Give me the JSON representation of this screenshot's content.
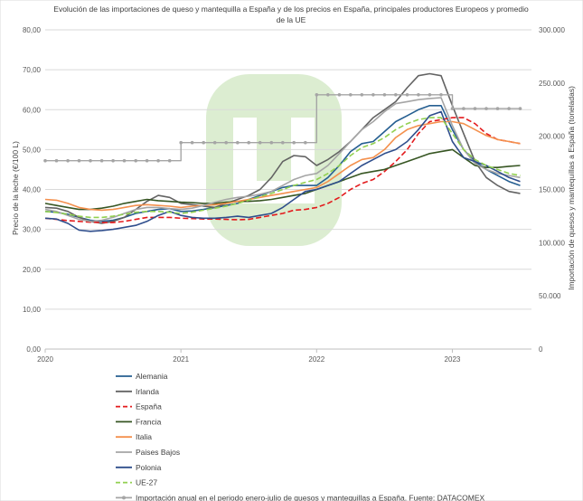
{
  "chart_data": {
    "type": "line",
    "title_lines": [
      "Evolución de las importaciones de queso y mantequilla a España y de los precios en  España, principales productores Europeos y promedio",
      "de la UE"
    ],
    "ylabel_left": "Precio de la leche (€/100 L)",
    "ylabel_right": "Importación de quesos y mantequillas a España (toneladas)",
    "ylim_left": [
      0,
      80
    ],
    "ylim_right": [
      0,
      300000
    ],
    "yticks_left": [
      "0,00",
      "10,00",
      "20,00",
      "30,00",
      "40,00",
      "50,00",
      "60,00",
      "70,00",
      "80,00"
    ],
    "yticks_right": [
      "0",
      "50.000",
      "100.000",
      "150.000",
      "200.000",
      "250.000",
      "300.000"
    ],
    "xlim": [
      2020,
      2023.583
    ],
    "xticks": [
      "2020",
      "2021",
      "2022",
      "2023"
    ],
    "gridlines": "horizontal",
    "legend_position": "bottom",
    "series": [
      {
        "name": "Alemania",
        "color": "#255E91",
        "dash": "solid",
        "axis": "left",
        "x": [
          2020,
          2020.083,
          2020.167,
          2020.25,
          2020.333,
          2020.417,
          2020.5,
          2020.583,
          2020.667,
          2020.75,
          2020.833,
          2020.917,
          2021,
          2021.083,
          2021.167,
          2021.25,
          2021.333,
          2021.417,
          2021.5,
          2021.583,
          2021.667,
          2021.75,
          2021.833,
          2021.917,
          2022,
          2022.083,
          2022.167,
          2022.25,
          2022.333,
          2022.417,
          2022.5,
          2022.583,
          2022.667,
          2022.75,
          2022.833,
          2022.917,
          2023,
          2023.083,
          2023.167,
          2023.25,
          2023.333,
          2023.417,
          2023.5
        ],
        "y": [
          34.5,
          34.3,
          33.8,
          33.0,
          32.3,
          32.0,
          32.3,
          33.0,
          34.0,
          34.5,
          35.0,
          35.2,
          34.5,
          34.6,
          35.0,
          35.5,
          36.0,
          36.5,
          37.5,
          38.5,
          39.5,
          40.5,
          41.0,
          41.0,
          41.0,
          43.0,
          46.0,
          49.5,
          51.5,
          52.0,
          54.5,
          57.0,
          58.5,
          60.0,
          61.0,
          61.0,
          55.0,
          50.0,
          47.0,
          45.0,
          43.5,
          42.0,
          41.0
        ]
      },
      {
        "name": "Irlanda",
        "color": "#636363",
        "dash": "solid",
        "axis": "left",
        "x": [
          2020,
          2020.083,
          2020.167,
          2020.25,
          2020.333,
          2020.417,
          2020.5,
          2020.583,
          2020.667,
          2020.75,
          2020.833,
          2020.917,
          2021,
          2021.083,
          2021.167,
          2021.25,
          2021.333,
          2021.417,
          2021.5,
          2021.583,
          2021.667,
          2021.75,
          2021.833,
          2021.917,
          2022,
          2022.083,
          2022.167,
          2022.25,
          2022.333,
          2022.417,
          2022.5,
          2022.583,
          2022.667,
          2022.75,
          2022.833,
          2022.917,
          2023,
          2023.083,
          2023.167,
          2023.25,
          2023.333,
          2023.417,
          2023.5
        ],
        "y": [
          35.5,
          35.3,
          34.5,
          33.0,
          32.0,
          31.5,
          32.0,
          33.0,
          35.0,
          37.0,
          38.5,
          38.0,
          36.5,
          36.2,
          35.8,
          35.5,
          36.5,
          37.5,
          38.5,
          40.0,
          43.0,
          47.0,
          48.5,
          48.2,
          46.0,
          47.5,
          49.5,
          52.0,
          55.0,
          58.0,
          60.0,
          62.0,
          65.5,
          68.5,
          69.0,
          68.5,
          61.0,
          54.0,
          47.0,
          43.0,
          41.0,
          39.5,
          39.0
        ]
      },
      {
        "name": "España",
        "color": "#E31A1C",
        "dash": "6,3",
        "axis": "left",
        "x": [
          2020,
          2020.083,
          2020.167,
          2020.25,
          2020.333,
          2020.417,
          2020.5,
          2020.583,
          2020.667,
          2020.75,
          2020.833,
          2020.917,
          2021,
          2021.083,
          2021.167,
          2021.25,
          2021.333,
          2021.417,
          2021.5,
          2021.583,
          2021.667,
          2021.75,
          2021.833,
          2021.917,
          2022,
          2022.083,
          2022.167,
          2022.25,
          2022.333,
          2022.417,
          2022.5,
          2022.583,
          2022.667,
          2022.75,
          2022.833,
          2022.917,
          2023,
          2023.083,
          2023.167,
          2023.25,
          2023.333,
          2023.417,
          2023.5
        ],
        "y": [
          32.8,
          32.5,
          32.2,
          32.0,
          31.8,
          31.7,
          31.7,
          32.0,
          32.5,
          33.0,
          33.0,
          33.0,
          32.8,
          32.7,
          32.6,
          32.6,
          32.5,
          32.4,
          32.5,
          33.0,
          33.5,
          34.0,
          34.8,
          35.0,
          35.5,
          36.5,
          38.0,
          40.0,
          41.5,
          42.5,
          44.5,
          47.0,
          50.0,
          54.0,
          57.0,
          57.5,
          58.0,
          58.0,
          56.5,
          54.0,
          52.5,
          52.0,
          51.5
        ]
      },
      {
        "name": "Francia",
        "color": "#375623",
        "dash": "solid",
        "axis": "left",
        "x": [
          2020,
          2020.083,
          2020.167,
          2020.25,
          2020.333,
          2020.417,
          2020.5,
          2020.583,
          2020.667,
          2020.75,
          2020.833,
          2020.917,
          2021,
          2021.083,
          2021.167,
          2021.25,
          2021.333,
          2021.417,
          2021.5,
          2021.583,
          2021.667,
          2021.75,
          2021.833,
          2021.917,
          2022,
          2022.083,
          2022.167,
          2022.25,
          2022.333,
          2022.417,
          2022.5,
          2022.583,
          2022.667,
          2022.75,
          2022.833,
          2022.917,
          2023,
          2023.083,
          2023.167,
          2023.25,
          2023.333,
          2023.417,
          2023.5
        ],
        "y": [
          36.5,
          36.0,
          35.5,
          35.0,
          35.0,
          35.3,
          35.8,
          36.5,
          37.0,
          37.5,
          37.2,
          37.0,
          36.8,
          36.7,
          36.5,
          36.5,
          36.8,
          37.0,
          37.0,
          37.2,
          37.5,
          38.0,
          38.5,
          39.0,
          40.0,
          41.0,
          42.0,
          43.0,
          44.0,
          44.5,
          45.0,
          46.0,
          47.0,
          48.0,
          49.0,
          49.5,
          50.0,
          48.0,
          46.0,
          45.5,
          45.5,
          45.8,
          46.0
        ]
      },
      {
        "name": "Italia",
        "color": "#F4904D",
        "dash": "solid",
        "axis": "left",
        "x": [
          2020,
          2020.083,
          2020.167,
          2020.25,
          2020.333,
          2020.417,
          2020.5,
          2020.583,
          2020.667,
          2020.75,
          2020.833,
          2020.917,
          2021,
          2021.083,
          2021.167,
          2021.25,
          2021.333,
          2021.417,
          2021.5,
          2021.583,
          2021.667,
          2021.75,
          2021.833,
          2021.917,
          2022,
          2022.083,
          2022.167,
          2022.25,
          2022.333,
          2022.417,
          2022.5,
          2022.583,
          2022.667,
          2022.75,
          2022.833,
          2022.917,
          2023,
          2023.083,
          2023.167,
          2023.25,
          2023.333,
          2023.417,
          2023.5
        ],
        "y": [
          37.5,
          37.3,
          36.5,
          35.5,
          35.0,
          34.8,
          35.0,
          35.5,
          36.0,
          36.2,
          36.0,
          35.8,
          35.5,
          35.8,
          36.0,
          36.2,
          36.5,
          37.0,
          37.5,
          38.0,
          38.5,
          39.0,
          39.5,
          40.0,
          40.5,
          42.0,
          44.0,
          46.0,
          47.5,
          48.0,
          50.0,
          53.0,
          55.0,
          56.0,
          56.5,
          57.0,
          57.0,
          56.5,
          55.0,
          53.5,
          52.5,
          52.0,
          51.5
        ]
      },
      {
        "name": "Paises Bajos",
        "color": "#A5A5A5",
        "dash": "solid",
        "axis": "left",
        "x": [
          2020,
          2020.083,
          2020.167,
          2020.25,
          2020.333,
          2020.417,
          2020.5,
          2020.583,
          2020.667,
          2020.75,
          2020.833,
          2020.917,
          2021,
          2021.083,
          2021.167,
          2021.25,
          2021.333,
          2021.417,
          2021.5,
          2021.583,
          2021.667,
          2021.75,
          2021.833,
          2021.917,
          2022,
          2022.083,
          2022.167,
          2022.25,
          2022.333,
          2022.417,
          2022.5,
          2022.583,
          2022.667,
          2022.75,
          2022.833,
          2022.917,
          2023,
          2023.083,
          2023.167,
          2023.25,
          2023.333,
          2023.417,
          2023.5
        ],
        "y": [
          35.0,
          34.5,
          33.5,
          32.5,
          32.0,
          32.3,
          33.0,
          34.0,
          35.0,
          35.5,
          35.5,
          35.2,
          35.0,
          35.3,
          36.0,
          36.8,
          37.5,
          38.0,
          38.3,
          38.8,
          39.5,
          41.0,
          42.5,
          43.5,
          44.0,
          46.0,
          49.0,
          52.0,
          55.0,
          57.0,
          59.5,
          61.5,
          62.0,
          62.5,
          62.8,
          63.0,
          56.0,
          50.0,
          46.5,
          45.0,
          44.0,
          43.5,
          43.0
        ]
      },
      {
        "name": "Polonia",
        "color": "#2F4E8C",
        "dash": "solid",
        "axis": "left",
        "x": [
          2020,
          2020.083,
          2020.167,
          2020.25,
          2020.333,
          2020.417,
          2020.5,
          2020.583,
          2020.667,
          2020.75,
          2020.833,
          2020.917,
          2021,
          2021.083,
          2021.167,
          2021.25,
          2021.333,
          2021.417,
          2021.5,
          2021.583,
          2021.667,
          2021.75,
          2021.833,
          2021.917,
          2022,
          2022.083,
          2022.167,
          2022.25,
          2022.333,
          2022.417,
          2022.5,
          2022.583,
          2022.667,
          2022.75,
          2022.833,
          2022.917,
          2023,
          2023.083,
          2023.167,
          2023.25,
          2023.333,
          2023.417,
          2023.5
        ],
        "y": [
          32.8,
          32.6,
          31.5,
          29.8,
          29.5,
          29.7,
          30.0,
          30.5,
          31.0,
          32.0,
          33.5,
          34.5,
          33.5,
          33.0,
          32.8,
          32.8,
          33.0,
          33.3,
          33.0,
          33.5,
          34.0,
          35.5,
          37.5,
          39.5,
          40.0,
          41.0,
          42.0,
          44.0,
          46.0,
          47.5,
          49.0,
          50.0,
          52.0,
          55.0,
          58.5,
          59.5,
          52.0,
          48.0,
          47.0,
          46.0,
          44.5,
          43.0,
          42.0
        ]
      },
      {
        "name": "UE-27",
        "color": "#92D050",
        "dash": "6,3",
        "axis": "left",
        "x": [
          2020,
          2020.083,
          2020.167,
          2020.25,
          2020.333,
          2020.417,
          2020.5,
          2020.583,
          2020.667,
          2020.75,
          2020.833,
          2020.917,
          2021,
          2021.083,
          2021.167,
          2021.25,
          2021.333,
          2021.417,
          2021.5,
          2021.583,
          2021.667,
          2021.75,
          2021.833,
          2021.917,
          2022,
          2022.083,
          2022.167,
          2022.25,
          2022.333,
          2022.417,
          2022.5,
          2022.583,
          2022.667,
          2022.75,
          2022.833,
          2022.917,
          2023,
          2023.083,
          2023.167,
          2023.25,
          2023.333,
          2023.417,
          2023.5
        ],
        "y": [
          34.5,
          34.2,
          33.8,
          33.3,
          33.0,
          33.0,
          33.3,
          33.8,
          34.3,
          34.5,
          34.5,
          34.3,
          34.0,
          34.3,
          34.8,
          35.3,
          35.8,
          36.5,
          37.3,
          38.2,
          39.0,
          40.0,
          41.0,
          41.8,
          42.5,
          44.0,
          46.0,
          48.5,
          50.5,
          51.5,
          53.0,
          55.0,
          56.5,
          57.5,
          58.0,
          58.0,
          54.0,
          50.0,
          47.5,
          46.0,
          45.0,
          44.0,
          43.5
        ]
      },
      {
        "name": "Importación anual en el periodo enero-julio de quesos y mantequillas a España. Fuente: DATACOMEX",
        "color": "#A5A5A5",
        "dash": "solid",
        "axis": "right",
        "markers": true,
        "step": true,
        "x": [
          2020,
          2020.083,
          2020.167,
          2020.25,
          2020.333,
          2020.417,
          2020.5,
          2020.583,
          2020.667,
          2020.75,
          2020.833,
          2020.917,
          2021,
          2021.083,
          2021.167,
          2021.25,
          2021.333,
          2021.417,
          2021.5,
          2021.583,
          2021.667,
          2021.75,
          2021.833,
          2021.917,
          2022,
          2022.083,
          2022.167,
          2022.25,
          2022.333,
          2022.417,
          2022.5,
          2022.583,
          2022.667,
          2022.75,
          2022.833,
          2022.917,
          2023,
          2023.083,
          2023.167,
          2023.25,
          2023.333,
          2023.417,
          2023.5
        ],
        "y": [
          177000,
          177000,
          177000,
          177000,
          177000,
          177000,
          177000,
          177000,
          177000,
          177000,
          177000,
          177000,
          194000,
          194000,
          194000,
          194000,
          194000,
          194000,
          194000,
          194000,
          194000,
          194000,
          194000,
          194000,
          239000,
          239000,
          239000,
          239000,
          239000,
          239000,
          239000,
          239000,
          239000,
          239000,
          239000,
          239000,
          226000,
          226000,
          226000,
          226000,
          226000,
          226000,
          226000
        ]
      }
    ]
  }
}
